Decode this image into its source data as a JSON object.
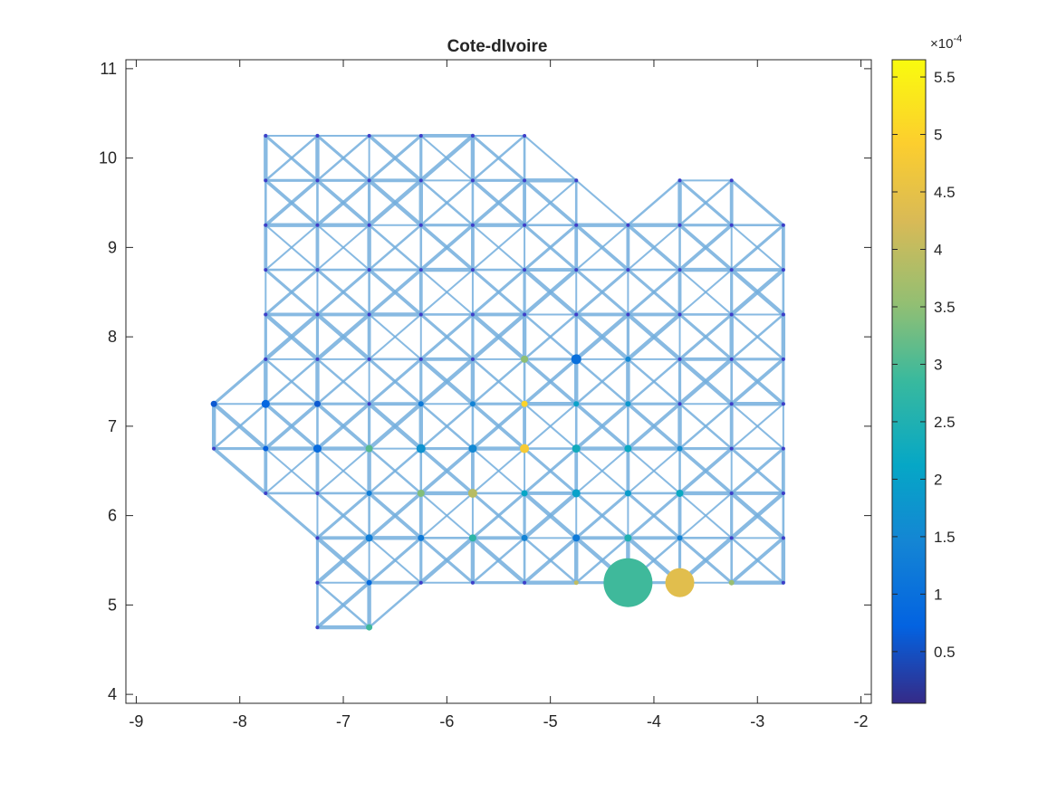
{
  "chart_data": {
    "type": "network-scatter",
    "title": "Cote-dIvoire",
    "xlabel": "",
    "ylabel": "",
    "xlim": [
      -9.1,
      -1.9
    ],
    "ylim": [
      3.9,
      11.1
    ],
    "xticks": [
      -9,
      -8,
      -7,
      -6,
      -5,
      -4,
      -3,
      -2
    ],
    "yticks": [
      4,
      5,
      6,
      7,
      8,
      9,
      10,
      11
    ],
    "grid": false,
    "edge_color": "#73AEDD",
    "grid_columns": [
      -8.25,
      -7.75,
      -7.25,
      -6.75,
      -6.25,
      -5.75,
      -5.25,
      -4.75,
      -4.25,
      -3.75,
      -3.25,
      -2.75
    ],
    "column_ranges": [
      {
        "x": -8.25,
        "ymin": 6.75,
        "ymax": 7.25
      },
      {
        "x": -7.75,
        "ymin": 6.25,
        "ymax": 10.25
      },
      {
        "x": -7.25,
        "ymin": 4.75,
        "ymax": 10.25
      },
      {
        "x": -6.75,
        "ymin": 4.75,
        "ymax": 10.25
      },
      {
        "x": -6.25,
        "ymin": 5.25,
        "ymax": 10.25
      },
      {
        "x": -5.75,
        "ymin": 5.25,
        "ymax": 10.25
      },
      {
        "x": -5.25,
        "ymin": 5.25,
        "ymax": 10.25
      },
      {
        "x": -4.75,
        "ymin": 5.25,
        "ymax": 9.75
      },
      {
        "x": -4.25,
        "ymin": 5.25,
        "ymax": 9.25
      },
      {
        "x": -3.75,
        "ymin": 5.25,
        "ymax": 9.75
      },
      {
        "x": -3.25,
        "ymin": 5.25,
        "ymax": 9.75
      },
      {
        "x": -2.75,
        "ymin": 5.25,
        "ymax": 9.25
      }
    ],
    "nodes_highlighted": [
      {
        "x": -4.25,
        "y": 5.25,
        "size": 27,
        "value": 2.9
      },
      {
        "x": -3.75,
        "y": 5.25,
        "size": 16,
        "value": 4.4
      },
      {
        "x": -5.25,
        "y": 6.75,
        "size": 5,
        "value": 4.8
      },
      {
        "x": -5.25,
        "y": 7.25,
        "size": 3.5,
        "value": 5.0
      },
      {
        "x": -5.75,
        "y": 6.25,
        "size": 5,
        "value": 3.9
      },
      {
        "x": -5.25,
        "y": 7.75,
        "size": 4,
        "value": 3.5
      },
      {
        "x": -6.25,
        "y": 6.25,
        "size": 4,
        "value": 3.4
      },
      {
        "x": -4.75,
        "y": 7.75,
        "size": 5.5,
        "value": 1.0
      },
      {
        "x": -6.75,
        "y": 6.75,
        "size": 4,
        "value": 3.1
      },
      {
        "x": -4.25,
        "y": 5.75,
        "size": 4,
        "value": 2.5
      },
      {
        "x": -6.25,
        "y": 6.75,
        "size": 5,
        "value": 1.7
      },
      {
        "x": -5.75,
        "y": 6.75,
        "size": 4.5,
        "value": 1.5
      },
      {
        "x": -6.75,
        "y": 4.75,
        "size": 3.5,
        "value": 2.9
      },
      {
        "x": -5.75,
        "y": 5.75,
        "size": 4,
        "value": 2.7
      },
      {
        "x": -4.75,
        "y": 6.75,
        "size": 4.5,
        "value": 2.3
      },
      {
        "x": -4.25,
        "y": 6.75,
        "size": 4,
        "value": 2.2
      },
      {
        "x": -3.75,
        "y": 6.25,
        "size": 4,
        "value": 2.2
      },
      {
        "x": -4.75,
        "y": 6.25,
        "size": 4.5,
        "value": 2.0
      },
      {
        "x": -4.25,
        "y": 6.25,
        "size": 3.5,
        "value": 1.9
      },
      {
        "x": -3.25,
        "y": 5.25,
        "size": 3,
        "value": 3.6
      },
      {
        "x": -4.75,
        "y": 5.25,
        "size": 2.5,
        "value": 4.0
      },
      {
        "x": -7.25,
        "y": 6.75,
        "size": 4.5,
        "value": 0.9
      },
      {
        "x": -7.75,
        "y": 7.25,
        "size": 4.5,
        "value": 0.8
      },
      {
        "x": -8.25,
        "y": 7.25,
        "size": 3.5,
        "value": 0.6
      },
      {
        "x": -6.75,
        "y": 5.75,
        "size": 4,
        "value": 1.3
      },
      {
        "x": -5.25,
        "y": 6.25,
        "size": 3.5,
        "value": 2.1
      },
      {
        "x": -5.25,
        "y": 5.75,
        "size": 3.5,
        "value": 1.4
      },
      {
        "x": -4.75,
        "y": 5.75,
        "size": 4,
        "value": 1.2
      },
      {
        "x": -6.25,
        "y": 5.75,
        "size": 3.5,
        "value": 1.2
      },
      {
        "x": -3.75,
        "y": 6.75,
        "size": 3,
        "value": 1.6
      },
      {
        "x": -4.25,
        "y": 7.25,
        "size": 3,
        "value": 1.8
      },
      {
        "x": -4.75,
        "y": 7.25,
        "size": 3,
        "value": 2.0
      },
      {
        "x": -4.25,
        "y": 7.75,
        "size": 3,
        "value": 1.5
      },
      {
        "x": -3.75,
        "y": 5.75,
        "size": 3,
        "value": 1.4
      },
      {
        "x": -6.75,
        "y": 5.25,
        "size": 3,
        "value": 0.9
      },
      {
        "x": -7.25,
        "y": 7.25,
        "size": 3.5,
        "value": 0.6
      },
      {
        "x": -7.75,
        "y": 6.75,
        "size": 3,
        "value": 0.7
      },
      {
        "x": -6.75,
        "y": 6.25,
        "size": 3,
        "value": 1.3
      },
      {
        "x": -6.25,
        "y": 7.25,
        "size": 3,
        "value": 1.2
      },
      {
        "x": -5.75,
        "y": 7.25,
        "size": 3,
        "value": 1.4
      }
    ],
    "colorbar": {
      "min": 0.05,
      "max": 5.65,
      "ticks": [
        0.5,
        1,
        1.5,
        2,
        2.5,
        3,
        3.5,
        4,
        4.5,
        5,
        5.5
      ],
      "tick_labels": [
        "0.5",
        "1",
        "1.5",
        "2",
        "2.5",
        "3",
        "3.5",
        "4",
        "4.5",
        "5",
        "5.5"
      ],
      "exponent_base": "×10",
      "exponent_power": "-4",
      "colormap": "parula"
    }
  }
}
